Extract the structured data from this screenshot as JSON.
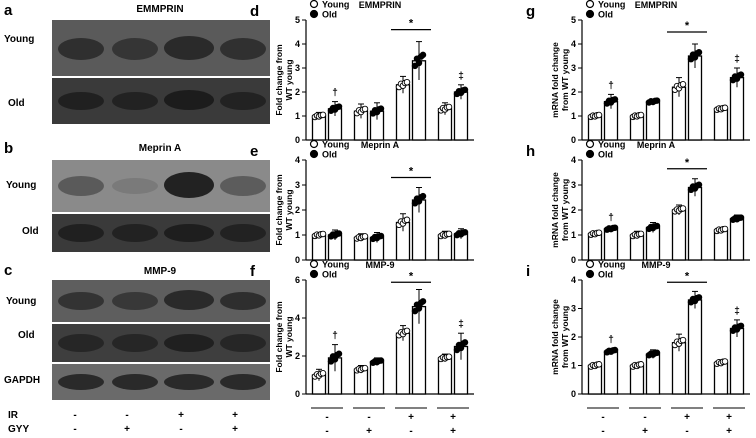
{
  "blots": {
    "a": {
      "letter": "a",
      "title": "EMMPRIN",
      "rows": [
        "Young",
        "Old"
      ]
    },
    "b": {
      "letter": "b",
      "title": "Meprin A",
      "rows": [
        "Young",
        "Old"
      ]
    },
    "c": {
      "letter": "c",
      "title": "MMP-9",
      "rows": [
        "Young",
        "Old",
        "GAPDH"
      ]
    }
  },
  "conditions": {
    "IR": {
      "label": "IR",
      "values": [
        "-",
        "-",
        "+",
        "+"
      ]
    },
    "GYY": {
      "label": "GYY",
      "values": [
        "-",
        "+",
        "-",
        "+"
      ]
    }
  },
  "colors": {
    "young_fill": "#ffffff",
    "old_fill": "#ffffff",
    "points_young": "#ffffff",
    "points_old": "#000000",
    "blot_bg": "#4a4a4a"
  },
  "chart_data": [
    {
      "id": "d",
      "letter": "d",
      "type": "bar",
      "title": "EMMPRIN",
      "ylabel_lines": [
        "Fold change from",
        "WT young"
      ],
      "ylim": [
        0,
        5
      ],
      "yticks": [
        0,
        1,
        2,
        3,
        4,
        5
      ],
      "legend": [
        "Young",
        "Old"
      ],
      "categories": [
        "IR-/GYY-",
        "IR-/GYY+",
        "IR+/GYY-",
        "IR+/GYY+"
      ],
      "series": [
        {
          "name": "Young",
          "values": [
            1.0,
            1.2,
            2.3,
            1.3
          ],
          "errors": [
            0.15,
            0.3,
            0.35,
            0.25
          ]
        },
        {
          "name": "Old",
          "values": [
            1.3,
            1.2,
            3.3,
            2.0
          ],
          "errors": [
            0.3,
            0.35,
            0.8,
            0.3
          ]
        }
      ],
      "marks": [
        {
          "group": 0,
          "symbol": "†"
        },
        {
          "group": 2,
          "symbol": "*",
          "bracket": true
        },
        {
          "group": 3,
          "symbol": "‡"
        }
      ]
    },
    {
      "id": "e",
      "letter": "e",
      "type": "bar",
      "title": "Meprin A",
      "ylabel_lines": [
        "Fold change from",
        "WT young"
      ],
      "ylim": [
        0,
        4
      ],
      "yticks": [
        0,
        1,
        2,
        3,
        4
      ],
      "legend": [
        "Young",
        "Old"
      ],
      "categories": [
        "IR-/GYY-",
        "IR-/GYY+",
        "IR+/GYY-",
        "IR+/GYY+"
      ],
      "series": [
        {
          "name": "Young",
          "values": [
            1.0,
            0.9,
            1.5,
            1.0
          ],
          "errors": [
            0.1,
            0.15,
            0.35,
            0.15
          ]
        },
        {
          "name": "Old",
          "values": [
            1.0,
            0.9,
            2.4,
            1.05
          ],
          "errors": [
            0.2,
            0.2,
            0.5,
            0.2
          ]
        }
      ],
      "marks": [
        {
          "group": 2,
          "symbol": "*",
          "bracket": true
        }
      ]
    },
    {
      "id": "f",
      "letter": "f",
      "type": "bar",
      "title": "MMP-9",
      "ylabel_lines": [
        "Fold change from",
        "WT young"
      ],
      "ylim": [
        0,
        6
      ],
      "yticks": [
        0,
        2,
        4,
        6
      ],
      "legend": [
        "Young",
        "Old"
      ],
      "categories": [
        "IR-/GYY-",
        "IR-/GYY+",
        "IR+/GYY-",
        "IR+/GYY+"
      ],
      "series": [
        {
          "name": "Young",
          "values": [
            1.0,
            1.3,
            3.2,
            1.9
          ],
          "errors": [
            0.3,
            0.2,
            0.4,
            0.2
          ]
        },
        {
          "name": "Old",
          "values": [
            1.9,
            1.7,
            4.6,
            2.5
          ],
          "errors": [
            0.7,
            0.2,
            0.9,
            0.7
          ]
        }
      ],
      "marks": [
        {
          "group": 0,
          "symbol": "†"
        },
        {
          "group": 2,
          "symbol": "*",
          "bracket": true
        },
        {
          "group": 3,
          "symbol": "‡"
        }
      ]
    },
    {
      "id": "g",
      "letter": "g",
      "type": "bar",
      "title": "EMMPRIN",
      "ylabel_lines": [
        "mRNA fold change",
        "from WT young"
      ],
      "ylim": [
        0,
        5
      ],
      "yticks": [
        0,
        1,
        2,
        3,
        4,
        5
      ],
      "legend": [
        "Young",
        "Old"
      ],
      "categories": [
        "IR-/GYY-",
        "IR-/GYY+",
        "IR+/GYY-",
        "IR+/GYY+"
      ],
      "series": [
        {
          "name": "Young",
          "values": [
            1.0,
            1.0,
            2.2,
            1.3
          ],
          "errors": [
            0.1,
            0.1,
            0.4,
            0.1
          ]
        },
        {
          "name": "Old",
          "values": [
            1.6,
            1.6,
            3.5,
            2.6
          ],
          "errors": [
            0.3,
            0.1,
            0.5,
            0.4
          ]
        }
      ],
      "marks": [
        {
          "group": 0,
          "symbol": "†"
        },
        {
          "group": 2,
          "symbol": "*",
          "bracket": true
        },
        {
          "group": 3,
          "symbol": "‡"
        }
      ]
    },
    {
      "id": "h",
      "letter": "h",
      "type": "bar",
      "title": "Meprin A",
      "ylabel_lines": [
        "mRNA fold change",
        "from WT young"
      ],
      "ylim": [
        0,
        4
      ],
      "yticks": [
        0,
        1,
        2,
        3,
        4
      ],
      "legend": [
        "Young",
        "Old"
      ],
      "categories": [
        "IR-/GYY-",
        "IR-/GYY+",
        "IR+/GYY-",
        "IR+/GYY+"
      ],
      "series": [
        {
          "name": "Young",
          "values": [
            1.05,
            1.0,
            2.0,
            1.2
          ],
          "errors": [
            0.1,
            0.15,
            0.2,
            0.1
          ]
        },
        {
          "name": "Old",
          "values": [
            1.25,
            1.3,
            2.9,
            1.65
          ],
          "errors": [
            0.1,
            0.2,
            0.35,
            0.15
          ]
        }
      ],
      "marks": [
        {
          "group": 0,
          "symbol": "†"
        },
        {
          "group": 2,
          "symbol": "*",
          "bracket": true
        }
      ]
    },
    {
      "id": "i",
      "letter": "i",
      "type": "bar",
      "title": "MMP-9",
      "ylabel_lines": [
        "mRNA fold change",
        "from WT young"
      ],
      "ylim": [
        0,
        4
      ],
      "yticks": [
        0,
        1,
        2,
        3,
        4
      ],
      "legend": [
        "Young",
        "Old"
      ],
      "categories": [
        "IR-/GYY-",
        "IR-/GYY+",
        "IR+/GYY-",
        "IR+/GYY+"
      ],
      "series": [
        {
          "name": "Young",
          "values": [
            1.0,
            1.0,
            1.8,
            1.1
          ],
          "errors": [
            0.05,
            0.05,
            0.3,
            0.1
          ]
        },
        {
          "name": "Old",
          "values": [
            1.5,
            1.4,
            3.3,
            2.3
          ],
          "errors": [
            0.1,
            0.15,
            0.3,
            0.3
          ]
        }
      ],
      "marks": [
        {
          "group": 0,
          "symbol": "†"
        },
        {
          "group": 2,
          "symbol": "*",
          "bracket": true
        },
        {
          "group": 3,
          "symbol": "‡"
        }
      ]
    }
  ]
}
